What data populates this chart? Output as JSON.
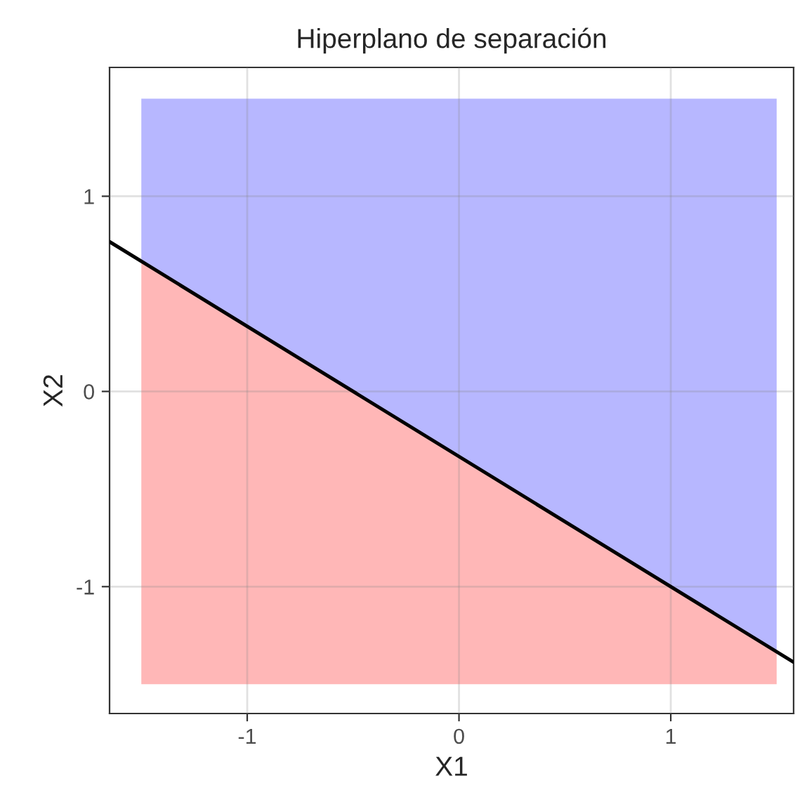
{
  "chart_data": {
    "type": "area",
    "title": "Hiperplano de separación",
    "xlabel": "X1",
    "ylabel": "X2",
    "series": [
      {
        "color": "#ffb3b3",
        "x": [
          -1.5,
          1.5,
          1.5,
          -1.5
        ],
        "values": [
          0.667,
          -1.333,
          -1.5,
          -1.5
        ]
      },
      {
        "color": "#b3b3ff",
        "x": [
          -1.5,
          1.5,
          1.5,
          -1.5
        ],
        "values": [
          0.667,
          -1.333,
          1.5,
          1.5
        ]
      },
      {
        "type": "line",
        "color": "#000000",
        "x": [
          -1.65,
          1.58
        ],
        "values": [
          0.767,
          -1.387
        ]
      }
    ],
    "xlim": [
      -1.65,
      1.58
    ],
    "ylim": [
      -1.65,
      1.66
    ],
    "xticks": [
      -1,
      0,
      1
    ],
    "yticks": [
      -1,
      0,
      1
    ],
    "grid": true
  }
}
